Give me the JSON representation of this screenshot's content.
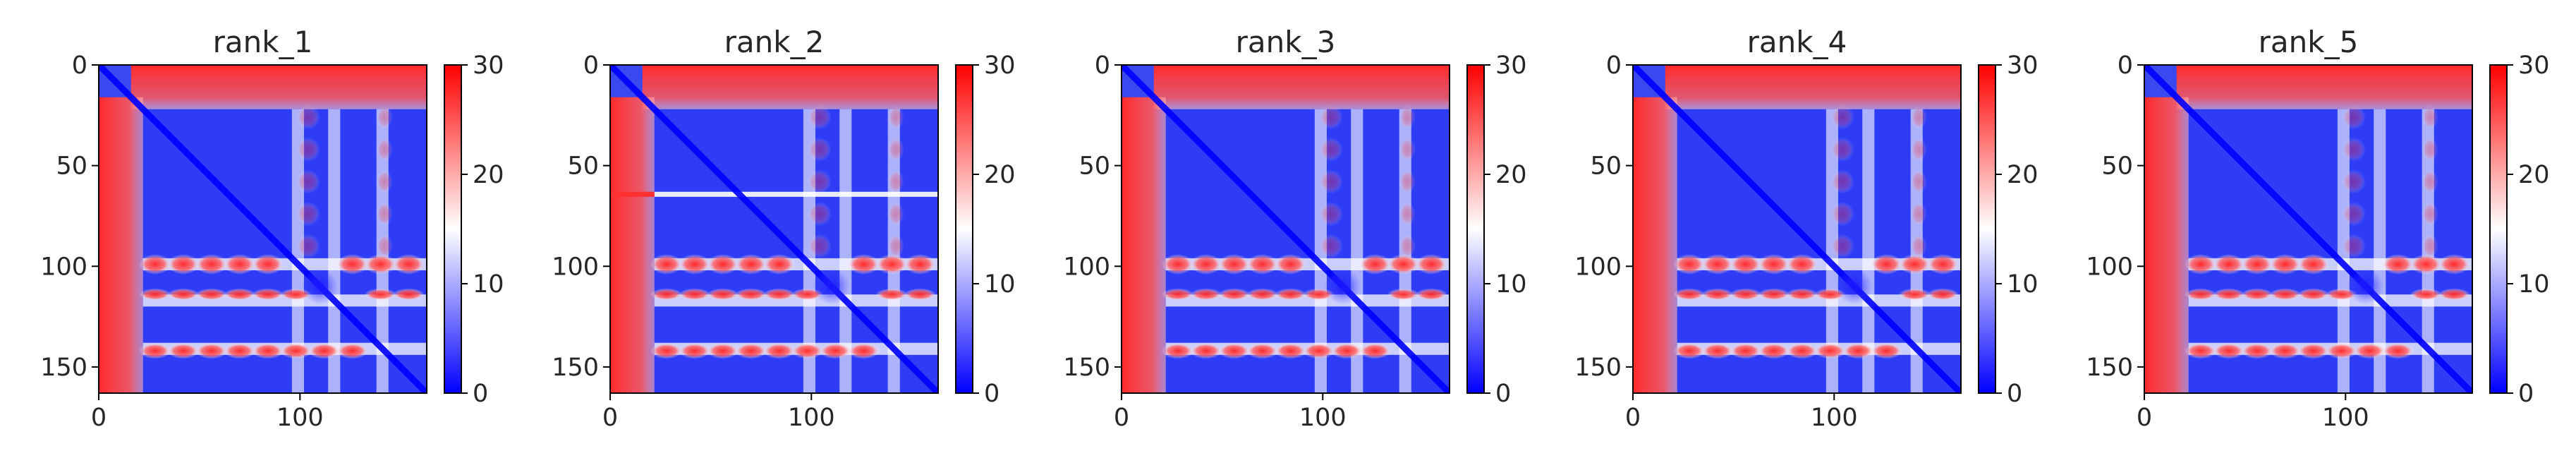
{
  "chart_data": [
    {
      "type": "heatmap",
      "title": "rank_1",
      "xlim": [
        0,
        163
      ],
      "ylim": [
        163,
        0
      ],
      "x_ticks": [
        0,
        100
      ],
      "y_ticks": [
        0,
        50,
        100,
        150
      ],
      "colorbar": {
        "min": 0,
        "max": 30,
        "ticks": [
          0,
          10,
          20,
          30
        ],
        "colormap": [
          "#0000ff",
          "#ffffff",
          "#ff0000"
        ]
      },
      "x_band": [
        24,
        98,
        116,
        140
      ],
      "y_band": [
        24,
        98,
        116,
        140
      ],
      "interdomain_stripe": null,
      "grid": false
    },
    {
      "type": "heatmap",
      "title": "rank_2",
      "xlim": [
        0,
        163
      ],
      "ylim": [
        163,
        0
      ],
      "x_ticks": [
        0,
        100
      ],
      "y_ticks": [
        0,
        50,
        100,
        150
      ],
      "colorbar": {
        "min": 0,
        "max": 30,
        "ticks": [
          0,
          10,
          20,
          30
        ],
        "colormap": [
          "#0000ff",
          "#ffffff",
          "#ff0000"
        ]
      },
      "x_band": [
        24,
        98,
        116,
        140
      ],
      "y_band": [
        24,
        98,
        116,
        140
      ],
      "interdomain_stripe": 64,
      "grid": false
    },
    {
      "type": "heatmap",
      "title": "rank_3",
      "xlim": [
        0,
        163
      ],
      "ylim": [
        163,
        0
      ],
      "x_ticks": [
        0,
        100
      ],
      "y_ticks": [
        0,
        50,
        100,
        150
      ],
      "colorbar": {
        "min": 0,
        "max": 30,
        "ticks": [
          0,
          10,
          20,
          30
        ],
        "colormap": [
          "#0000ff",
          "#ffffff",
          "#ff0000"
        ]
      },
      "x_band": [
        24,
        98,
        116,
        140
      ],
      "y_band": [
        24,
        98,
        116,
        140
      ],
      "interdomain_stripe": null,
      "grid": false
    },
    {
      "type": "heatmap",
      "title": "rank_4",
      "xlim": [
        0,
        163
      ],
      "ylim": [
        163,
        0
      ],
      "x_ticks": [
        0,
        100
      ],
      "y_ticks": [
        0,
        50,
        100,
        150
      ],
      "colorbar": {
        "min": 0,
        "max": 30,
        "ticks": [
          0,
          10,
          20,
          30
        ],
        "colormap": [
          "#0000ff",
          "#ffffff",
          "#ff0000"
        ]
      },
      "x_band": [
        24,
        98,
        116,
        140
      ],
      "y_band": [
        24,
        98,
        116,
        140
      ],
      "interdomain_stripe": null,
      "grid": false
    },
    {
      "type": "heatmap",
      "title": "rank_5",
      "xlim": [
        0,
        163
      ],
      "ylim": [
        163,
        0
      ],
      "x_ticks": [
        0,
        100
      ],
      "y_ticks": [
        0,
        50,
        100,
        150
      ],
      "colorbar": {
        "min": 0,
        "max": 30,
        "ticks": [
          0,
          10,
          20,
          30
        ],
        "colormap": [
          "#0000ff",
          "#ffffff",
          "#ff0000"
        ]
      },
      "x_band": [
        24,
        98,
        116,
        140
      ],
      "y_band": [
        24,
        98,
        116,
        140
      ],
      "interdomain_stripe": null,
      "grid": false
    }
  ]
}
